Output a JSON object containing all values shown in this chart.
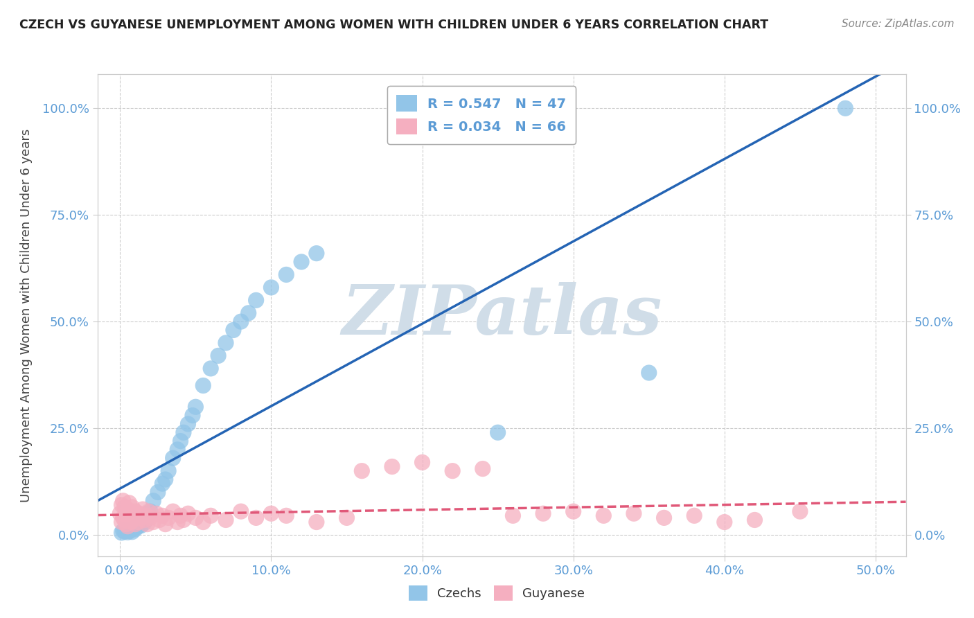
{
  "title": "CZECH VS GUYANESE UNEMPLOYMENT AMONG WOMEN WITH CHILDREN UNDER 6 YEARS CORRELATION CHART",
  "source": "Source: ZipAtlas.com",
  "xlabel_ticks": [
    "0.0%",
    "10.0%",
    "20.0%",
    "30.0%",
    "40.0%",
    "50.0%"
  ],
  "ylabel_ticks_left": [
    "0.0%",
    "25.0%",
    "50.0%",
    "75.0%",
    "100.0%"
  ],
  "ylabel_ticks_right": [
    "0.0%",
    "25.0%",
    "50.0%",
    "75.0%",
    "100.0%"
  ],
  "xlabel_vals": [
    0.0,
    0.1,
    0.2,
    0.3,
    0.4,
    0.5
  ],
  "ylabel_vals": [
    0.0,
    0.25,
    0.5,
    0.75,
    1.0
  ],
  "xlim": [
    -0.015,
    0.52
  ],
  "ylim": [
    -0.05,
    1.08
  ],
  "legend_czech": "R = 0.547   N = 47",
  "legend_guyanese": "R = 0.034   N = 66",
  "ylabel": "Unemployment Among Women with Children Under 6 years",
  "blue_color": "#92c5e8",
  "pink_color": "#f5afc0",
  "blue_line_color": "#2464b4",
  "pink_line_color": "#e05878",
  "watermark_color": "#d0dde8",
  "czech_x": [
    0.001,
    0.002,
    0.003,
    0.004,
    0.005,
    0.006,
    0.007,
    0.008,
    0.009,
    0.01,
    0.011,
    0.012,
    0.013,
    0.014,
    0.015,
    0.016,
    0.017,
    0.018,
    0.019,
    0.02,
    0.022,
    0.025,
    0.028,
    0.03,
    0.032,
    0.035,
    0.038,
    0.04,
    0.042,
    0.045,
    0.048,
    0.05,
    0.055,
    0.06,
    0.065,
    0.07,
    0.075,
    0.08,
    0.085,
    0.09,
    0.1,
    0.11,
    0.12,
    0.13,
    0.25,
    0.35,
    0.48
  ],
  "czech_y": [
    0.005,
    0.01,
    0.008,
    0.012,
    0.006,
    0.009,
    0.011,
    0.007,
    0.015,
    0.013,
    0.018,
    0.02,
    0.025,
    0.022,
    0.03,
    0.028,
    0.035,
    0.04,
    0.05,
    0.055,
    0.08,
    0.1,
    0.12,
    0.13,
    0.15,
    0.18,
    0.2,
    0.22,
    0.24,
    0.26,
    0.28,
    0.3,
    0.35,
    0.39,
    0.42,
    0.45,
    0.48,
    0.5,
    0.52,
    0.55,
    0.58,
    0.61,
    0.64,
    0.66,
    0.24,
    0.38,
    1.0
  ],
  "guyanese_x": [
    0.0,
    0.001,
    0.001,
    0.002,
    0.002,
    0.003,
    0.003,
    0.004,
    0.004,
    0.005,
    0.005,
    0.006,
    0.006,
    0.007,
    0.007,
    0.008,
    0.008,
    0.009,
    0.01,
    0.01,
    0.011,
    0.012,
    0.013,
    0.014,
    0.015,
    0.016,
    0.017,
    0.018,
    0.019,
    0.02,
    0.022,
    0.024,
    0.026,
    0.028,
    0.03,
    0.032,
    0.035,
    0.038,
    0.04,
    0.042,
    0.045,
    0.05,
    0.055,
    0.06,
    0.07,
    0.08,
    0.09,
    0.1,
    0.11,
    0.13,
    0.15,
    0.16,
    0.18,
    0.2,
    0.22,
    0.24,
    0.26,
    0.28,
    0.3,
    0.32,
    0.34,
    0.36,
    0.38,
    0.4,
    0.42,
    0.45
  ],
  "guyanese_y": [
    0.05,
    0.03,
    0.07,
    0.04,
    0.08,
    0.035,
    0.065,
    0.025,
    0.055,
    0.02,
    0.06,
    0.045,
    0.075,
    0.03,
    0.05,
    0.04,
    0.065,
    0.035,
    0.025,
    0.055,
    0.045,
    0.03,
    0.05,
    0.04,
    0.06,
    0.035,
    0.045,
    0.025,
    0.055,
    0.04,
    0.03,
    0.05,
    0.035,
    0.045,
    0.025,
    0.04,
    0.055,
    0.03,
    0.045,
    0.035,
    0.05,
    0.04,
    0.03,
    0.045,
    0.035,
    0.055,
    0.04,
    0.05,
    0.045,
    0.03,
    0.04,
    0.15,
    0.16,
    0.17,
    0.15,
    0.155,
    0.045,
    0.05,
    0.055,
    0.045,
    0.05,
    0.04,
    0.045,
    0.03,
    0.035,
    0.055
  ]
}
